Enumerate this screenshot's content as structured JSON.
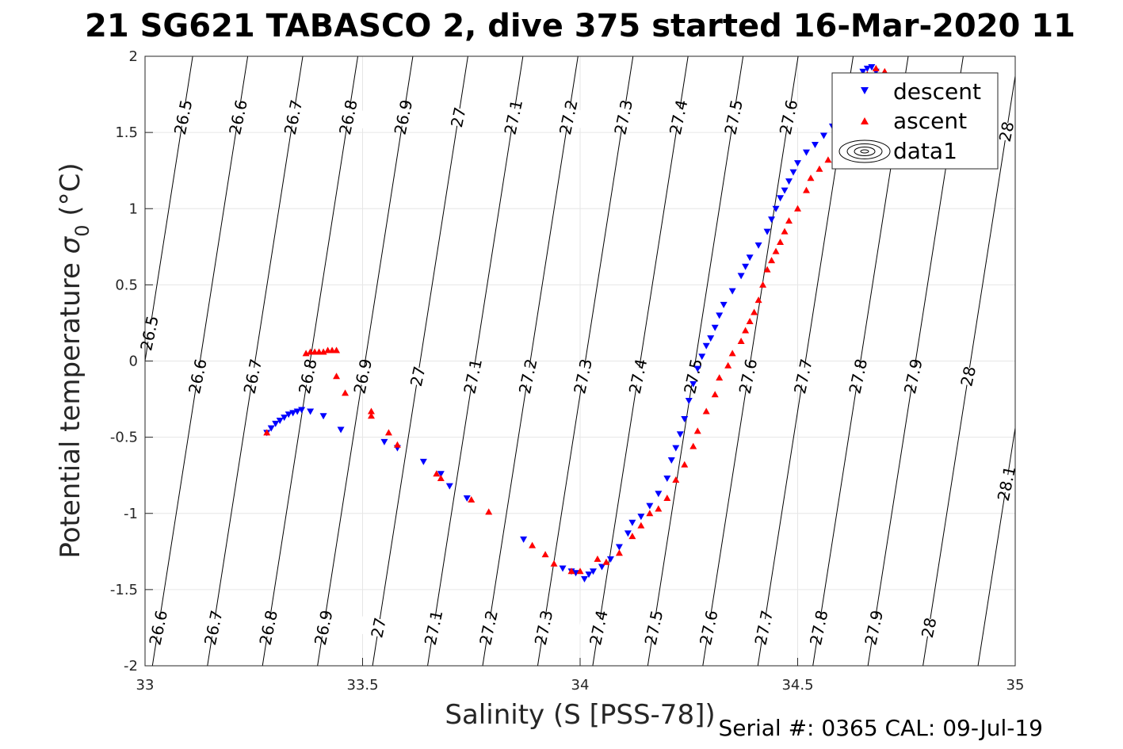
{
  "chart_data": {
    "type": "scatter",
    "title": "21 SG621 TABASCO 2, dive 375 started 16-Mar-2020 11",
    "xlabel": "Salinity (S [PSS-78])",
    "ylabel_text": "Potential temperature ",
    "ylabel_symbol": "σ",
    "ylabel_subscript": "0",
    "ylabel_unit": " (°C)",
    "footer": "Serial #: 0365  CAL: 09-Jul-19",
    "xlim": [
      33,
      35
    ],
    "ylim": [
      -2,
      2
    ],
    "xticks": [
      33,
      33.5,
      34,
      34.5,
      35
    ],
    "xtick_labels": [
      "33",
      "33.5",
      "34",
      "34.5",
      "35"
    ],
    "yticks": [
      -2,
      -1.5,
      -1,
      -0.5,
      0,
      0.5,
      1,
      1.5,
      2
    ],
    "ytick_labels": [
      "-2",
      "-1.5",
      "-1",
      "-0.5",
      "0",
      "0.5",
      "1",
      "1.5",
      "2"
    ],
    "grid": true,
    "legend_position": "top-right",
    "legend": [
      {
        "name": "descent",
        "marker": "triangle-down",
        "color": "#0000ff"
      },
      {
        "name": "ascent",
        "marker": "triangle-up",
        "color": "#ff0000"
      },
      {
        "name": "data1",
        "marker": "contour",
        "color": "#000000"
      }
    ],
    "isopycnals": [
      26.5,
      26.6,
      26.7,
      26.8,
      26.9,
      27,
      27.1,
      27.2,
      27.3,
      27.4,
      27.5,
      27.6,
      27.7,
      27.8,
      27.9,
      28,
      28.1
    ],
    "isopycnal_label_rows": [
      {
        "row": "top",
        "labels": [
          "26.5",
          "26.6",
          "26.7",
          "26.8",
          "26.9",
          "27",
          "27.1",
          "27.2",
          "27.3",
          "27.4",
          "27.5",
          "27.6",
          "28"
        ]
      },
      {
        "row": "middle",
        "labels": [
          "26.5",
          "26.6",
          "26.7",
          "26.8",
          "26.9",
          "27",
          "27.1",
          "27.2",
          "27.3",
          "27.4",
          "27.5",
          "27.6",
          "27.7",
          "27.8",
          "27.9",
          "28",
          "28.1"
        ]
      },
      {
        "row": "bottom",
        "labels": [
          "26.6",
          "26.7",
          "26.8",
          "26.9",
          "27",
          "27.1",
          "27.2",
          "27.3",
          "27.4",
          "27.5",
          "27.6",
          "27.7",
          "27.8",
          "27.9",
          "28"
        ]
      }
    ],
    "series": [
      {
        "name": "descent",
        "color": "#0000ff",
        "marker": "triangle-down",
        "points": [
          [
            33.28,
            -0.47
          ],
          [
            33.29,
            -0.44
          ],
          [
            33.3,
            -0.41
          ],
          [
            33.31,
            -0.39
          ],
          [
            33.32,
            -0.37
          ],
          [
            33.33,
            -0.35
          ],
          [
            33.34,
            -0.34
          ],
          [
            33.35,
            -0.33
          ],
          [
            33.36,
            -0.32
          ],
          [
            33.38,
            -0.33
          ],
          [
            33.41,
            -0.36
          ],
          [
            33.45,
            -0.45
          ],
          [
            33.55,
            -0.53
          ],
          [
            33.58,
            -0.57
          ],
          [
            33.64,
            -0.66
          ],
          [
            33.68,
            -0.74
          ],
          [
            33.7,
            -0.82
          ],
          [
            33.74,
            -0.9
          ],
          [
            33.87,
            -1.17
          ],
          [
            33.96,
            -1.36
          ],
          [
            33.98,
            -1.38
          ],
          [
            33.99,
            -1.39
          ],
          [
            34.01,
            -1.43
          ],
          [
            34.02,
            -1.4
          ],
          [
            34.03,
            -1.38
          ],
          [
            34.05,
            -1.35
          ],
          [
            34.07,
            -1.3
          ],
          [
            34.09,
            -1.22
          ],
          [
            34.11,
            -1.13
          ],
          [
            34.12,
            -1.06
          ],
          [
            34.14,
            -1.02
          ],
          [
            34.16,
            -0.95
          ],
          [
            34.18,
            -0.87
          ],
          [
            34.2,
            -0.77
          ],
          [
            34.21,
            -0.65
          ],
          [
            34.22,
            -0.57
          ],
          [
            34.23,
            -0.48
          ],
          [
            34.24,
            -0.38
          ],
          [
            34.25,
            -0.26
          ],
          [
            34.26,
            -0.15
          ],
          [
            34.27,
            -0.05
          ],
          [
            34.28,
            0.03
          ],
          [
            34.29,
            0.1
          ],
          [
            34.3,
            0.15
          ],
          [
            34.31,
            0.22
          ],
          [
            34.32,
            0.3
          ],
          [
            34.33,
            0.37
          ],
          [
            34.35,
            0.46
          ],
          [
            34.37,
            0.56
          ],
          [
            34.38,
            0.62
          ],
          [
            34.39,
            0.68
          ],
          [
            34.41,
            0.76
          ],
          [
            34.43,
            0.85
          ],
          [
            34.44,
            0.93
          ],
          [
            34.45,
            1.0
          ],
          [
            34.46,
            1.07
          ],
          [
            34.47,
            1.12
          ],
          [
            34.48,
            1.18
          ],
          [
            34.49,
            1.24
          ],
          [
            34.5,
            1.3
          ],
          [
            34.52,
            1.37
          ],
          [
            34.54,
            1.42
          ],
          [
            34.56,
            1.48
          ],
          [
            34.58,
            1.54
          ],
          [
            34.6,
            1.6
          ],
          [
            34.62,
            1.68
          ],
          [
            34.63,
            1.77
          ],
          [
            34.64,
            1.84
          ],
          [
            34.65,
            1.9
          ],
          [
            34.66,
            1.92
          ],
          [
            34.67,
            1.93
          ],
          [
            34.68,
            1.9
          ]
        ]
      },
      {
        "name": "ascent",
        "color": "#ff0000",
        "marker": "triangle-up",
        "points": [
          [
            33.28,
            -0.47
          ],
          [
            33.37,
            0.05
          ],
          [
            33.38,
            0.06
          ],
          [
            33.39,
            0.06
          ],
          [
            33.4,
            0.06
          ],
          [
            33.41,
            0.06
          ],
          [
            33.42,
            0.07
          ],
          [
            33.43,
            0.07
          ],
          [
            33.44,
            0.07
          ],
          [
            33.44,
            -0.1
          ],
          [
            33.46,
            -0.21
          ],
          [
            33.52,
            -0.33
          ],
          [
            33.52,
            -0.36
          ],
          [
            33.56,
            -0.47
          ],
          [
            33.58,
            -0.55
          ],
          [
            33.67,
            -0.74
          ],
          [
            33.68,
            -0.77
          ],
          [
            33.75,
            -0.91
          ],
          [
            33.79,
            -0.99
          ],
          [
            33.89,
            -1.21
          ],
          [
            33.92,
            -1.27
          ],
          [
            33.94,
            -1.33
          ],
          [
            33.98,
            -1.38
          ],
          [
            34.0,
            -1.38
          ],
          [
            34.04,
            -1.3
          ],
          [
            34.06,
            -1.32
          ],
          [
            34.09,
            -1.26
          ],
          [
            34.12,
            -1.15
          ],
          [
            34.14,
            -1.08
          ],
          [
            34.16,
            -1.0
          ],
          [
            34.18,
            -0.97
          ],
          [
            34.2,
            -0.9
          ],
          [
            34.22,
            -0.78
          ],
          [
            34.24,
            -0.68
          ],
          [
            34.26,
            -0.56
          ],
          [
            34.27,
            -0.46
          ],
          [
            34.29,
            -0.33
          ],
          [
            34.31,
            -0.22
          ],
          [
            34.32,
            -0.11
          ],
          [
            34.34,
            -0.03
          ],
          [
            34.35,
            0.05
          ],
          [
            34.37,
            0.13
          ],
          [
            34.38,
            0.2
          ],
          [
            34.39,
            0.26
          ],
          [
            34.4,
            0.32
          ],
          [
            34.41,
            0.4
          ],
          [
            34.42,
            0.5
          ],
          [
            34.43,
            0.6
          ],
          [
            34.44,
            0.66
          ],
          [
            34.45,
            0.72
          ],
          [
            34.46,
            0.78
          ],
          [
            34.47,
            0.85
          ],
          [
            34.48,
            0.92
          ],
          [
            34.5,
            1.0
          ],
          [
            34.52,
            1.12
          ],
          [
            34.53,
            1.2
          ],
          [
            34.55,
            1.26
          ],
          [
            34.57,
            1.32
          ],
          [
            34.59,
            1.4
          ],
          [
            34.61,
            1.48
          ],
          [
            34.62,
            1.55
          ],
          [
            34.63,
            1.64
          ],
          [
            34.64,
            1.74
          ],
          [
            34.65,
            1.82
          ],
          [
            34.66,
            1.88
          ],
          [
            34.68,
            1.92
          ],
          [
            34.7,
            1.9
          ],
          [
            34.71,
            1.86
          ]
        ]
      }
    ]
  }
}
